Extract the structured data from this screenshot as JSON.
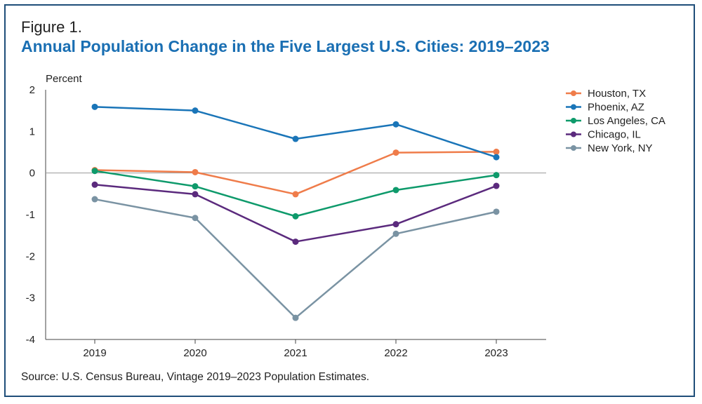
{
  "figure_label": "Figure 1.",
  "title": "Annual Population Change in the Five Largest U.S. Cities: 2019–2023",
  "source": "Source: U.S. Census Bureau, Vintage 2019–2023 Population Estimates.",
  "colors": {
    "frame": "#1f4e79",
    "title": "#1a6fb3"
  },
  "chart_data": {
    "type": "line",
    "title": "Annual Population Change in the Five Largest U.S. Cities: 2019–2023",
    "xlabel": "",
    "ylabel": "Percent",
    "x": [
      "2019",
      "2020",
      "2021",
      "2022",
      "2023"
    ],
    "ylim": [
      -4,
      2
    ],
    "yticks": [
      "2",
      "1",
      "0",
      "-1",
      "-2",
      "-3",
      "-4"
    ],
    "grid": false,
    "legend_position": "right",
    "series": [
      {
        "name": "Houston, TX",
        "color": "#ef7c4a",
        "values": [
          0.07,
          0.02,
          -0.51,
          0.49,
          0.51
        ]
      },
      {
        "name": "Phoenix, AZ",
        "color": "#1a75b8",
        "values": [
          1.59,
          1.5,
          0.82,
          1.17,
          0.38
        ]
      },
      {
        "name": "Los Angeles, CA",
        "color": "#0e9a6b",
        "values": [
          0.05,
          -0.32,
          -1.04,
          -0.41,
          -0.05
        ]
      },
      {
        "name": "Chicago, IL",
        "color": "#5b2a7d",
        "values": [
          -0.28,
          -0.51,
          -1.65,
          -1.23,
          -0.31
        ]
      },
      {
        "name": "New York, NY",
        "color": "#7a93a3",
        "values": [
          -0.63,
          -1.08,
          -3.48,
          -1.46,
          -0.93
        ]
      }
    ]
  }
}
